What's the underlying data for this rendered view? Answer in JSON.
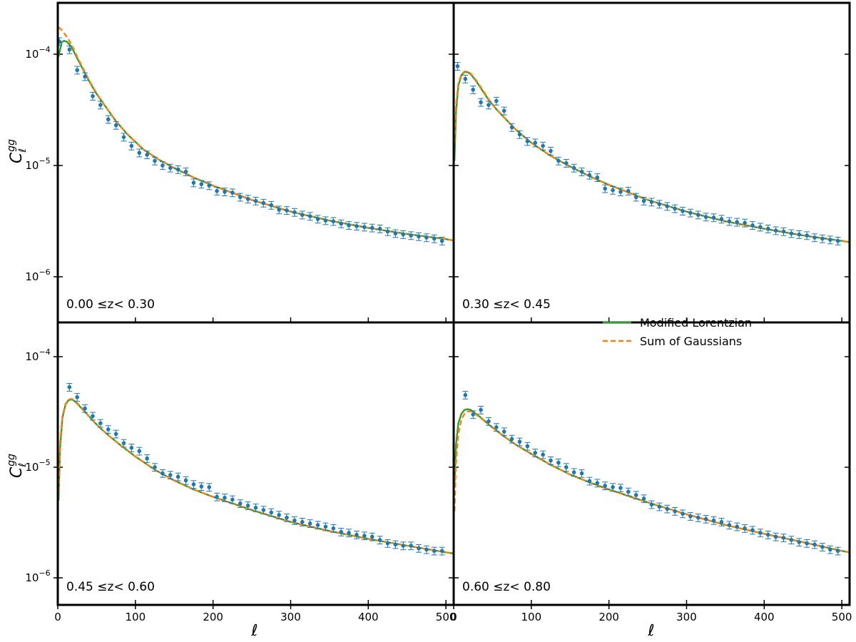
{
  "chart_data": {
    "type": "line",
    "layout": "2x2 grid, shared x and y axes",
    "xlabel": "ℓ",
    "ylabel": {
      "main": "C",
      "sub": "ℓ",
      "sup": "gg"
    },
    "xlim": [
      0,
      510
    ],
    "ylim": [
      5e-07,
      0.0003
    ],
    "yscale": "log",
    "xticks": [
      0,
      100,
      200,
      300,
      400,
      500
    ],
    "xtick_labels": [
      "0",
      "100",
      "200",
      "300",
      "400",
      "500"
    ],
    "yticks": [
      1e-06,
      1e-05,
      0.0001
    ],
    "ytick_labels": [
      {
        "base": "10",
        "exp": "−6"
      },
      {
        "base": "10",
        "exp": "−5"
      },
      {
        "base": "10",
        "exp": "−4"
      }
    ],
    "grid": false,
    "legend": {
      "position": "top-right of bottom-right panel",
      "entries": [
        {
          "label": "Modified Lorentzian",
          "style": "solid",
          "color": "#2ca02c"
        },
        {
          "label": "Sum of Gaussians",
          "style": "dashed",
          "color": "#ff7f0e"
        }
      ]
    },
    "data_color": "#1f77b4",
    "panels": [
      {
        "label": "0.00  ≤z<  0.30",
        "data": {
          "x": [
            2,
            15,
            25,
            35,
            45,
            55,
            65,
            75,
            85,
            95,
            105,
            115,
            125,
            135,
            145,
            155,
            165,
            175,
            185,
            195,
            205,
            215,
            225,
            235,
            245,
            255,
            265,
            275,
            285,
            295,
            305,
            315,
            325,
            335,
            345,
            355,
            365,
            375,
            385,
            395,
            405,
            415,
            425,
            435,
            445,
            455,
            465,
            475,
            485,
            495
          ],
          "y": [
            0.00013,
            0.00011,
            7.2e-05,
            6.3e-05,
            4.2e-05,
            3.5e-05,
            2.6e-05,
            2.3e-05,
            1.8e-05,
            1.5e-05,
            1.3e-05,
            1.25e-05,
            1.1e-05,
            1e-05,
            9.5e-06,
            9.2e-06,
            8.8e-06,
            7e-06,
            6.8e-06,
            6.6e-06,
            5.9e-06,
            5.8e-06,
            5.7e-06,
            5.2e-06,
            5e-06,
            4.8e-06,
            4.6e-06,
            4.4e-06,
            4e-06,
            3.95e-06,
            3.8e-06,
            3.6e-06,
            3.5e-06,
            3.3e-06,
            3.2e-06,
            3.15e-06,
            3e-06,
            2.9e-06,
            2.85e-06,
            2.8e-06,
            2.75e-06,
            2.7e-06,
            2.55e-06,
            2.45e-06,
            2.4e-06,
            2.35e-06,
            2.3e-06,
            2.25e-06,
            2.2e-06,
            2.1e-06
          ],
          "yerr": 0.08
        },
        "lorentzian": {
          "x": [
            1,
            5,
            8,
            12,
            16,
            20,
            25,
            30,
            40,
            50,
            60,
            75,
            90,
            110,
            130,
            150,
            175,
            200,
            250,
            300,
            350,
            400,
            450,
            500,
            510
          ],
          "y": [
            9.5e-05,
            0.000128,
            0.000132,
            0.000129,
            0.00012,
            0.000108,
            9.2e-05,
            7.9e-05,
            5.8e-05,
            4.4e-05,
            3.5e-05,
            2.5e-05,
            1.9e-05,
            1.4e-05,
            1.13e-05,
            9.5e-06,
            7.8e-06,
            6.6e-06,
            4.9e-06,
            3.85e-06,
            3.2e-06,
            2.75e-06,
            2.42e-06,
            2.18e-06,
            2.12e-06
          ]
        },
        "gaussians": {
          "x": [
            1,
            5,
            8,
            12,
            16,
            20,
            25,
            30,
            40,
            50,
            60,
            75,
            90,
            110,
            130,
            150,
            175,
            200,
            250,
            300,
            350,
            400,
            450,
            500,
            510
          ],
          "y": [
            0.000175,
            0.000165,
            0.000155,
            0.000142,
            0.000128,
            0.000113,
            9.5e-05,
            8.1e-05,
            5.9e-05,
            4.45e-05,
            3.5e-05,
            2.5e-05,
            1.9e-05,
            1.4e-05,
            1.13e-05,
            9.5e-06,
            7.8e-06,
            6.6e-06,
            4.9e-06,
            3.85e-06,
            3.2e-06,
            2.75e-06,
            2.42e-06,
            2.18e-06,
            2.12e-06
          ]
        }
      },
      {
        "label": "0.30  ≤z<  0.45",
        "data": {
          "x": [
            5,
            15,
            25,
            35,
            45,
            55,
            65,
            75,
            85,
            95,
            105,
            115,
            125,
            135,
            145,
            155,
            165,
            175,
            185,
            195,
            205,
            215,
            225,
            235,
            245,
            255,
            265,
            275,
            285,
            295,
            305,
            315,
            325,
            335,
            345,
            355,
            365,
            375,
            385,
            395,
            405,
            415,
            425,
            435,
            445,
            455,
            465,
            475,
            485,
            495
          ],
          "y": [
            7.8e-05,
            6e-05,
            4.8e-05,
            3.7e-05,
            3.5e-05,
            3.8e-05,
            3.1e-05,
            2.2e-05,
            1.9e-05,
            1.65e-05,
            1.6e-05,
            1.5e-05,
            1.35e-05,
            1.1e-05,
            1.05e-05,
            9.5e-06,
            8.8e-06,
            8.2e-06,
            7.8e-06,
            6.2e-06,
            6e-06,
            5.8e-06,
            5.9e-06,
            5.2e-06,
            4.8e-06,
            4.7e-06,
            4.5e-06,
            4.3e-06,
            4.1e-06,
            3.9e-06,
            3.75e-06,
            3.6e-06,
            3.45e-06,
            3.4e-06,
            3.3e-06,
            3.15e-06,
            3.1e-06,
            3.05e-06,
            2.9e-06,
            2.8e-06,
            2.7e-06,
            2.6e-06,
            2.55e-06,
            2.45e-06,
            2.4e-06,
            2.35e-06,
            2.25e-06,
            2.2e-06,
            2.15e-06,
            2.1e-06
          ],
          "yerr": 0.08
        },
        "lorentzian": {
          "x": [
            1,
            3,
            6,
            10,
            14,
            18,
            22,
            26,
            30,
            38,
            46,
            55,
            65,
            80,
            100,
            125,
            150,
            175,
            200,
            250,
            300,
            350,
            400,
            450,
            500,
            510
          ],
          "y": [
            1.1e-05,
            3e-05,
            5.2e-05,
            6.5e-05,
            6.9e-05,
            6.9e-05,
            6.6e-05,
            6.1e-05,
            5.6e-05,
            4.6e-05,
            3.8e-05,
            3.2e-05,
            2.7e-05,
            2.1e-05,
            1.6e-05,
            1.22e-05,
            9.8e-06,
            8e-06,
            6.7e-06,
            4.9e-06,
            3.85e-06,
            3.15e-06,
            2.7e-06,
            2.35e-06,
            2.1e-06,
            2.05e-06
          ]
        },
        "gaussians": {
          "x": [
            1,
            3,
            6,
            10,
            14,
            18,
            22,
            26,
            30,
            38,
            46,
            55,
            65,
            80,
            100,
            125,
            150,
            175,
            200,
            250,
            300,
            350,
            400,
            450,
            500,
            510
          ],
          "y": [
            1.6e-05,
            3.5e-05,
            5.5e-05,
            6.6e-05,
            7e-05,
            7e-05,
            6.7e-05,
            6.2e-05,
            5.7e-05,
            4.7e-05,
            3.85e-05,
            3.2e-05,
            2.7e-05,
            2.1e-05,
            1.6e-05,
            1.22e-05,
            9.8e-06,
            8e-06,
            6.7e-06,
            4.9e-06,
            3.85e-06,
            3.15e-06,
            2.7e-06,
            2.35e-06,
            2.1e-06,
            2.05e-06
          ]
        }
      },
      {
        "label": "0.45  ≤z<  0.60",
        "data": {
          "x": [
            15,
            25,
            35,
            45,
            55,
            65,
            75,
            85,
            95,
            105,
            115,
            125,
            135,
            145,
            155,
            165,
            175,
            185,
            195,
            205,
            215,
            225,
            235,
            245,
            255,
            265,
            275,
            285,
            295,
            305,
            315,
            325,
            335,
            345,
            355,
            365,
            375,
            385,
            395,
            405,
            415,
            425,
            435,
            445,
            455,
            465,
            475,
            485,
            495
          ],
          "y": [
            5.3e-05,
            4.3e-05,
            3.4e-05,
            2.9e-05,
            2.5e-05,
            2.2e-05,
            2e-05,
            1.65e-05,
            1.5e-05,
            1.4e-05,
            1.2e-05,
            1e-05,
            8.8e-06,
            8.5e-06,
            8.2e-06,
            7.6e-06,
            7e-06,
            6.7e-06,
            6.6e-06,
            5.4e-06,
            5.3e-06,
            5.1e-06,
            4.7e-06,
            4.5e-06,
            4.3e-06,
            4.1e-06,
            3.9e-06,
            3.7e-06,
            3.5e-06,
            3.3e-06,
            3.2e-06,
            3.1e-06,
            3e-06,
            2.9e-06,
            2.8e-06,
            2.6e-06,
            2.55e-06,
            2.45e-06,
            2.4e-06,
            2.35e-06,
            2.2e-06,
            2.05e-06,
            2e-06,
            1.95e-06,
            1.95e-06,
            1.85e-06,
            1.8e-06,
            1.75e-06,
            1.75e-06
          ],
          "yerr": 0.08
        },
        "lorentzian": {
          "x": [
            1,
            3,
            6,
            10,
            14,
            18,
            22,
            26,
            30,
            38,
            46,
            55,
            65,
            80,
            100,
            125,
            150,
            175,
            200,
            250,
            300,
            350,
            400,
            450,
            500,
            510
          ],
          "y": [
            5e-06,
            1.5e-05,
            2.8e-05,
            3.7e-05,
            4.05e-05,
            4.1e-05,
            3.95e-05,
            3.7e-05,
            3.45e-05,
            3e-05,
            2.6e-05,
            2.25e-05,
            1.95e-05,
            1.6e-05,
            1.25e-05,
            9.5e-06,
            7.6e-06,
            6.3e-06,
            5.4e-06,
            4.1e-06,
            3.2e-06,
            2.65e-06,
            2.25e-06,
            1.95e-06,
            1.7e-06,
            1.66e-06
          ]
        },
        "gaussians": {
          "x": [
            1,
            3,
            6,
            10,
            14,
            18,
            22,
            26,
            30,
            38,
            46,
            55,
            65,
            80,
            100,
            125,
            150,
            175,
            200,
            250,
            300,
            350,
            400,
            450,
            500,
            510
          ],
          "y": [
            6e-06,
            1.7e-05,
            2.9e-05,
            3.75e-05,
            4.1e-05,
            4.15e-05,
            4e-05,
            3.75e-05,
            3.5e-05,
            3e-05,
            2.6e-05,
            2.25e-05,
            1.95e-05,
            1.6e-05,
            1.25e-05,
            9.5e-06,
            7.6e-06,
            6.3e-06,
            5.4e-06,
            4.1e-06,
            3.2e-06,
            2.65e-06,
            2.25e-06,
            1.95e-06,
            1.7e-06,
            1.66e-06
          ]
        }
      },
      {
        "label": "0.60  ≤z<  0.80",
        "data": {
          "x": [
            15,
            25,
            35,
            45,
            55,
            65,
            75,
            85,
            95,
            105,
            115,
            125,
            135,
            145,
            155,
            165,
            175,
            185,
            195,
            205,
            215,
            225,
            235,
            245,
            255,
            265,
            275,
            285,
            295,
            305,
            315,
            325,
            335,
            345,
            355,
            365,
            375,
            385,
            395,
            405,
            415,
            425,
            435,
            445,
            455,
            465,
            475,
            485,
            495
          ],
          "y": [
            4.5e-05,
            3e-05,
            3.3e-05,
            2.6e-05,
            2.3e-05,
            2.1e-05,
            1.8e-05,
            1.7e-05,
            1.55e-05,
            1.35e-05,
            1.3e-05,
            1.15e-05,
            1.1e-05,
            1e-05,
            9e-06,
            8.8e-06,
            7.5e-06,
            7.2e-06,
            6.8e-06,
            6.6e-06,
            6.5e-06,
            6e-06,
            5.6e-06,
            5.2e-06,
            4.6e-06,
            4.4e-06,
            4.2e-06,
            4e-06,
            3.8e-06,
            3.6e-06,
            3.5e-06,
            3.4e-06,
            3.3e-06,
            3.2e-06,
            3e-06,
            2.9e-06,
            2.8e-06,
            2.7e-06,
            2.55e-06,
            2.45e-06,
            2.35e-06,
            2.3e-06,
            2.2e-06,
            2.1e-06,
            2.05e-06,
            2e-06,
            1.9e-06,
            1.8e-06,
            1.75e-06
          ],
          "yerr": 0.08
        },
        "lorentzian": {
          "x": [
            1,
            3,
            6,
            10,
            14,
            18,
            22,
            26,
            30,
            38,
            46,
            55,
            65,
            80,
            100,
            125,
            150,
            175,
            200,
            250,
            300,
            350,
            400,
            450,
            500,
            510
          ],
          "y": [
            7e-06,
            1.6e-05,
            2.5e-05,
            3.05e-05,
            3.3e-05,
            3.35e-05,
            3.3e-05,
            3.15e-05,
            3e-05,
            2.7e-05,
            2.4e-05,
            2.15e-05,
            1.9e-05,
            1.6e-05,
            1.32e-05,
            1.05e-05,
            8.6e-06,
            7.3e-06,
            6.3e-06,
            4.8e-06,
            3.75e-06,
            3e-06,
            2.5e-06,
            2.1e-06,
            1.75e-06,
            1.7e-06
          ]
        },
        "gaussians": {
          "x": [
            1,
            3,
            6,
            10,
            14,
            18,
            22,
            26,
            30,
            38,
            46,
            55,
            65,
            80,
            100,
            125,
            150,
            175,
            200,
            250,
            300,
            350,
            400,
            450,
            500,
            510
          ],
          "y": [
            4e-06,
            1.1e-05,
            2e-05,
            2.7e-05,
            3.05e-05,
            3.2e-05,
            3.2e-05,
            3.1e-05,
            2.95e-05,
            2.68e-05,
            2.4e-05,
            2.15e-05,
            1.9e-05,
            1.6e-05,
            1.32e-05,
            1.05e-05,
            8.6e-06,
            7.3e-06,
            6.3e-06,
            4.8e-06,
            3.75e-06,
            3e-06,
            2.5e-06,
            2.1e-06,
            1.75e-06,
            1.7e-06
          ]
        }
      }
    ]
  }
}
